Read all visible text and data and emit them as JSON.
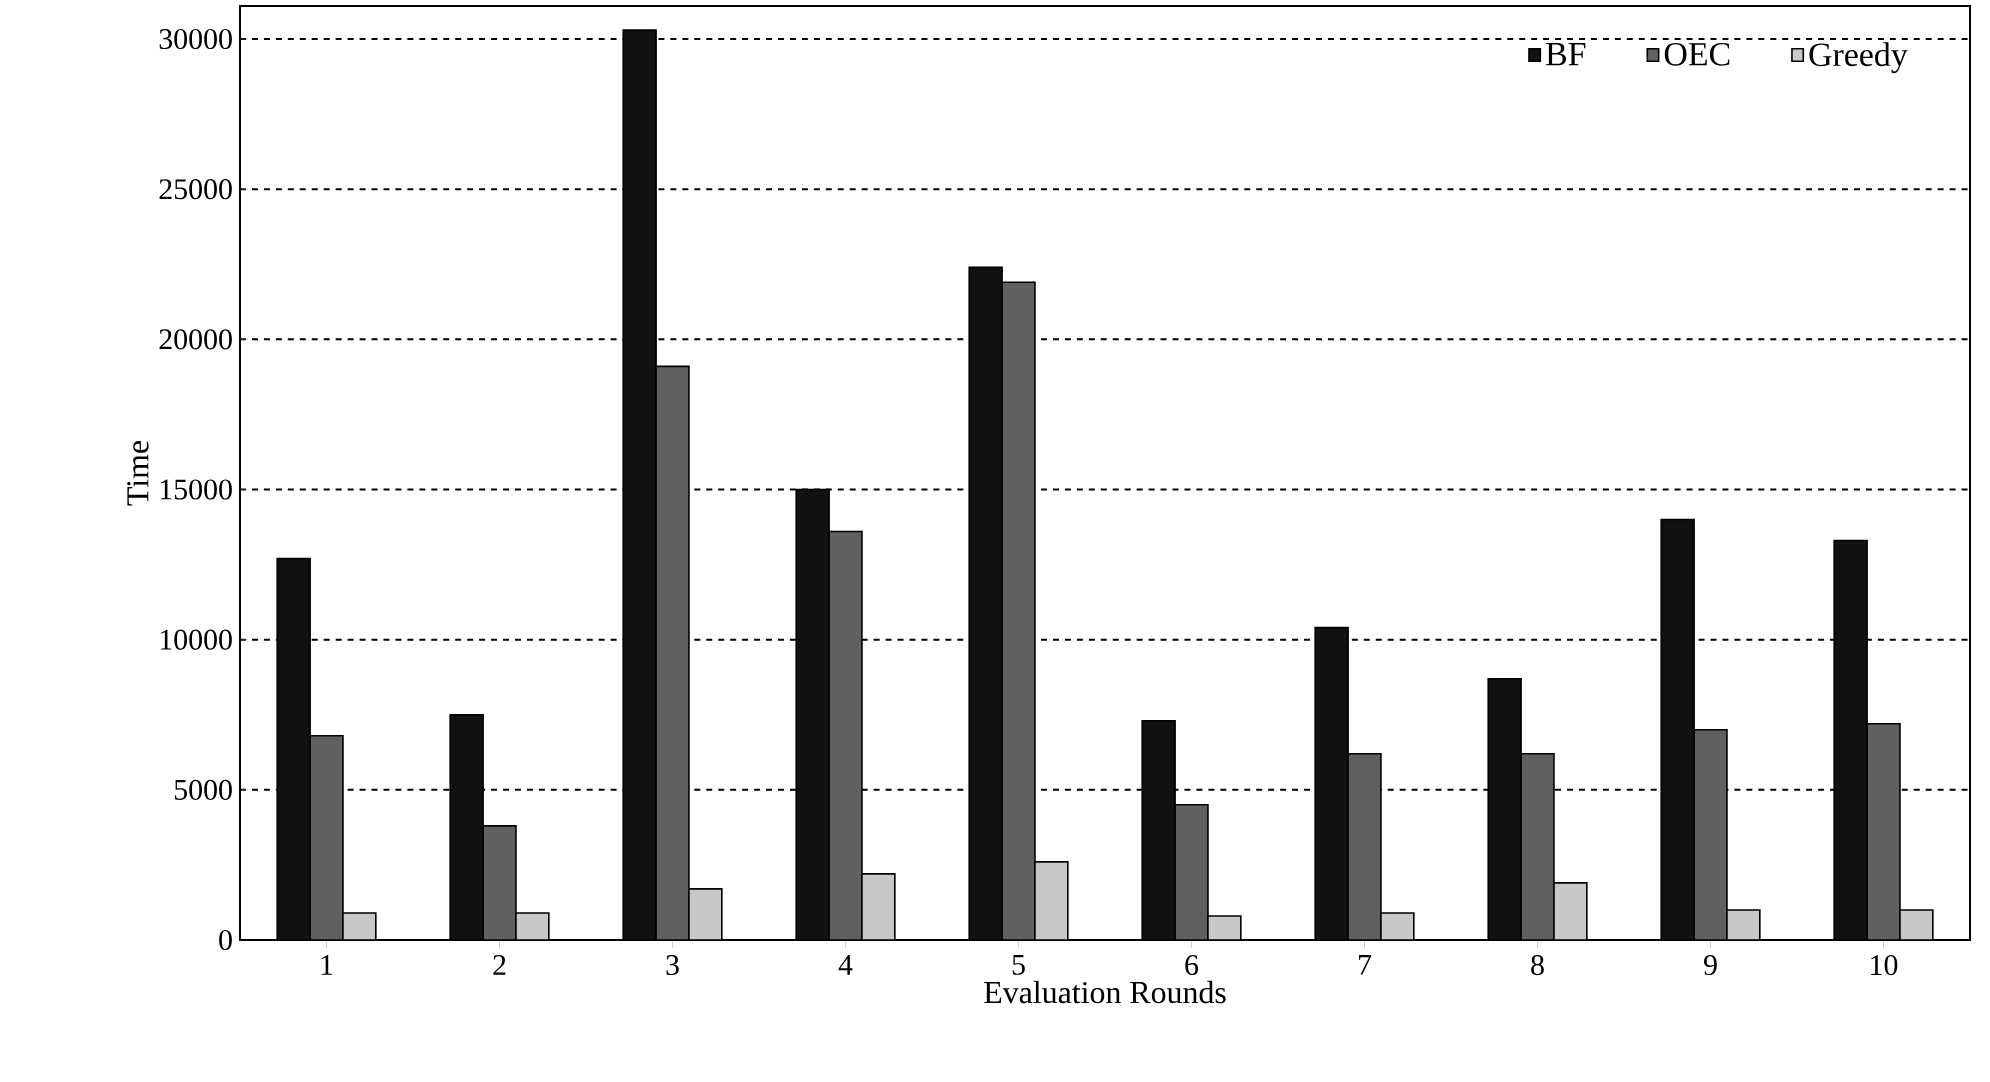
{
  "chart_data": {
    "type": "bar",
    "xlabel": "Evaluation Rounds",
    "ylabel": "Time",
    "categories": [
      "1",
      "2",
      "3",
      "4",
      "5",
      "6",
      "7",
      "8",
      "9",
      "10"
    ],
    "series": [
      {
        "name": "BF",
        "color": "#111111",
        "values": [
          12700,
          7500,
          30300,
          15000,
          22400,
          7300,
          10400,
          8700,
          14000,
          13300
        ]
      },
      {
        "name": "OEC",
        "color": "#606060",
        "values": [
          6800,
          3800,
          19100,
          13600,
          21900,
          4500,
          6200,
          6200,
          7000,
          7200
        ]
      },
      {
        "name": "Greedy",
        "color": "#c8c8c8",
        "values": [
          900,
          900,
          1700,
          2200,
          2600,
          800,
          900,
          1900,
          1000,
          1000
        ]
      }
    ],
    "ylim": [
      0,
      31100
    ],
    "yticks": [
      0,
      5000,
      10000,
      15000,
      20000,
      25000,
      30000
    ],
    "grid": "y",
    "legend": "top right"
  }
}
